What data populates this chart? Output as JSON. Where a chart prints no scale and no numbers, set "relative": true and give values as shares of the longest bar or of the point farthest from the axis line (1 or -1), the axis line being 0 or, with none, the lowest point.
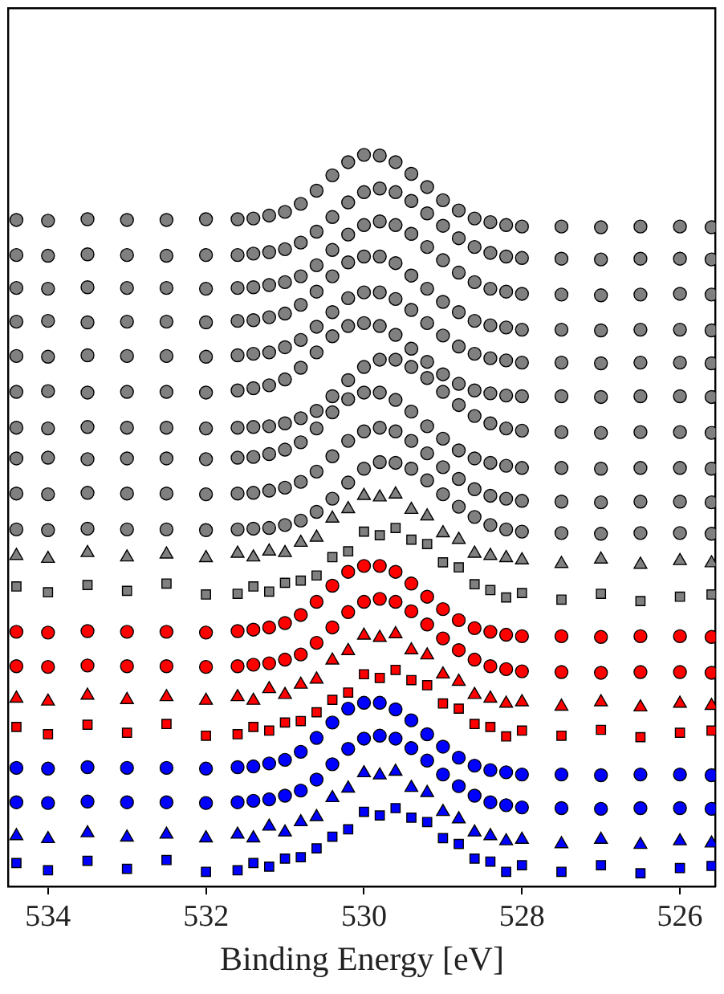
{
  "chart_data": {
    "type": "scatter",
    "relative": true,
    "xlabel": "Binding Energy [eV]",
    "xlim": [
      534.5,
      525.55
    ],
    "xticks": [
      534,
      532,
      530,
      528,
      526
    ],
    "tick_labels": "x",
    "grid": false,
    "legend": false,
    "x": [
      534.4,
      534,
      533.5,
      533,
      532.5,
      532,
      531.6,
      531.4,
      531.2,
      531,
      530.8,
      530.6,
      530.4,
      530.2,
      530,
      529.8,
      529.6,
      529.4,
      529.2,
      529,
      528.8,
      528.6,
      528.4,
      528.2,
      528,
      527.5,
      527,
      526.5,
      526,
      525.6
    ],
    "series": [
      {
        "color": "#808080",
        "marker": "circle",
        "values": [
          0.911,
          0.91,
          0.912,
          0.911,
          0.911,
          0.912,
          0.912,
          0.913,
          0.917,
          0.922,
          0.933,
          0.951,
          0.972,
          0.99,
          1,
          0.999,
          0.99,
          0.974,
          0.956,
          0.938,
          0.924,
          0.913,
          0.908,
          0.904,
          0.902,
          0.902,
          0.901,
          0.902,
          0.902,
          0.901
        ]
      },
      {
        "color": "#808080",
        "marker": "circle",
        "values": [
          0.863,
          0.862,
          0.864,
          0.863,
          0.862,
          0.863,
          0.863,
          0.865,
          0.867,
          0.871,
          0.88,
          0.895,
          0.915,
          0.935,
          0.949,
          0.954,
          0.949,
          0.937,
          0.92,
          0.903,
          0.886,
          0.874,
          0.866,
          0.861,
          0.859,
          0.858,
          0.857,
          0.858,
          0.858,
          0.857
        ]
      },
      {
        "color": "#808080",
        "marker": "circle",
        "values": [
          0.818,
          0.817,
          0.819,
          0.818,
          0.818,
          0.817,
          0.818,
          0.819,
          0.822,
          0.826,
          0.834,
          0.849,
          0.87,
          0.891,
          0.904,
          0.909,
          0.904,
          0.892,
          0.874,
          0.856,
          0.839,
          0.826,
          0.817,
          0.813,
          0.81,
          0.809,
          0.808,
          0.809,
          0.81,
          0.809
        ]
      },
      {
        "color": "#808080",
        "marker": "circle",
        "values": [
          0.772,
          0.773,
          0.771,
          0.772,
          0.772,
          0.771,
          0.773,
          0.774,
          0.778,
          0.783,
          0.795,
          0.813,
          0.834,
          0.853,
          0.861,
          0.861,
          0.852,
          0.835,
          0.817,
          0.799,
          0.785,
          0.773,
          0.767,
          0.764,
          0.761,
          0.761,
          0.76,
          0.761,
          0.761,
          0.76
        ]
      },
      {
        "color": "#808080",
        "marker": "circle",
        "values": [
          0.725,
          0.724,
          0.726,
          0.725,
          0.725,
          0.724,
          0.726,
          0.728,
          0.73,
          0.737,
          0.747,
          0.765,
          0.785,
          0.804,
          0.812,
          0.812,
          0.803,
          0.788,
          0.77,
          0.753,
          0.738,
          0.728,
          0.722,
          0.719,
          0.716,
          0.716,
          0.715,
          0.716,
          0.716,
          0.715
        ]
      },
      {
        "color": "#808080",
        "marker": "circle",
        "values": [
          0.676,
          0.677,
          0.675,
          0.676,
          0.676,
          0.675,
          0.678,
          0.681,
          0.685,
          0.693,
          0.709,
          0.73,
          0.752,
          0.766,
          0.77,
          0.766,
          0.754,
          0.735,
          0.717,
          0.7,
          0.687,
          0.678,
          0.674,
          0.671,
          0.67,
          0.67,
          0.669,
          0.67,
          0.67,
          0.669
        ]
      },
      {
        "color": "#808080",
        "marker": "circle",
        "values": [
          0.627,
          0.626,
          0.628,
          0.627,
          0.627,
          0.626,
          0.627,
          0.628,
          0.629,
          0.633,
          0.64,
          0.65,
          0.67,
          0.692,
          0.71,
          0.72,
          0.72,
          0.71,
          0.695,
          0.676,
          0.658,
          0.643,
          0.633,
          0.626,
          0.623,
          0.621,
          0.62,
          0.621,
          0.621,
          0.62
        ]
      },
      {
        "color": "#808080",
        "marker": "circle",
        "values": [
          0.585,
          0.586,
          0.584,
          0.585,
          0.585,
          0.584,
          0.586,
          0.587,
          0.591,
          0.597,
          0.607,
          0.626,
          0.648,
          0.666,
          0.675,
          0.675,
          0.665,
          0.649,
          0.629,
          0.612,
          0.596,
          0.585,
          0.579,
          0.575,
          0.572,
          0.572,
          0.571,
          0.572,
          0.572,
          0.571
        ]
      },
      {
        "color": "#808080",
        "marker": "circle",
        "values": [
          0.537,
          0.536,
          0.538,
          0.537,
          0.537,
          0.536,
          0.537,
          0.538,
          0.541,
          0.545,
          0.553,
          0.567,
          0.588,
          0.609,
          0.622,
          0.627,
          0.622,
          0.609,
          0.592,
          0.573,
          0.557,
          0.543,
          0.534,
          0.53,
          0.527,
          0.526,
          0.525,
          0.526,
          0.526,
          0.525
        ]
      },
      {
        "color": "#808080",
        "marker": "circle",
        "values": [
          0.488,
          0.487,
          0.489,
          0.488,
          0.488,
          0.487,
          0.488,
          0.489,
          0.49,
          0.494,
          0.5,
          0.512,
          0.53,
          0.552,
          0.571,
          0.58,
          0.579,
          0.571,
          0.555,
          0.536,
          0.519,
          0.505,
          0.494,
          0.488,
          0.485,
          0.483,
          0.482,
          0.483,
          0.483,
          0.482
        ]
      },
      {
        "color": "#808080",
        "marker": "triangle",
        "values": [
          0.452,
          0.448,
          0.456,
          0.45,
          0.454,
          0.449,
          0.455,
          0.45,
          0.458,
          0.456,
          0.47,
          0.477,
          0.503,
          0.516,
          0.534,
          0.532,
          0.536,
          0.515,
          0.506,
          0.483,
          0.474,
          0.455,
          0.452,
          0.449,
          0.446,
          0.441,
          0.447,
          0.44,
          0.445,
          0.442
        ]
      },
      {
        "color": "#808080",
        "marker": "square",
        "values": [
          0.41,
          0.402,
          0.412,
          0.404,
          0.414,
          0.399,
          0.4,
          0.41,
          0.403,
          0.415,
          0.418,
          0.425,
          0.45,
          0.458,
          0.485,
          0.48,
          0.49,
          0.474,
          0.468,
          0.443,
          0.436,
          0.413,
          0.405,
          0.395,
          0.401,
          0.392,
          0.4,
          0.39,
          0.396,
          0.399
        ]
      },
      {
        "color": "#ff0000",
        "marker": "circle",
        "values": [
          0.348,
          0.347,
          0.349,
          0.348,
          0.348,
          0.347,
          0.349,
          0.351,
          0.354,
          0.36,
          0.371,
          0.389,
          0.411,
          0.43,
          0.438,
          0.438,
          0.43,
          0.414,
          0.396,
          0.379,
          0.364,
          0.353,
          0.348,
          0.344,
          0.342,
          0.342,
          0.341,
          0.342,
          0.342,
          0.341
        ]
      },
      {
        "color": "#ff0000",
        "marker": "circle",
        "values": [
          0.301,
          0.3,
          0.302,
          0.301,
          0.301,
          0.3,
          0.301,
          0.303,
          0.305,
          0.31,
          0.317,
          0.333,
          0.354,
          0.375,
          0.389,
          0.393,
          0.389,
          0.376,
          0.358,
          0.339,
          0.323,
          0.31,
          0.301,
          0.297,
          0.294,
          0.293,
          0.292,
          0.293,
          0.293,
          0.292
        ]
      },
      {
        "color": "#ff0000",
        "marker": "triangle",
        "values": [
          0.257,
          0.253,
          0.261,
          0.255,
          0.259,
          0.254,
          0.259,
          0.254,
          0.27,
          0.262,
          0.276,
          0.283,
          0.309,
          0.322,
          0.343,
          0.34,
          0.345,
          0.323,
          0.316,
          0.29,
          0.28,
          0.262,
          0.257,
          0.25,
          0.252,
          0.246,
          0.252,
          0.245,
          0.25,
          0.247
        ]
      },
      {
        "color": "#ff0000",
        "marker": "square",
        "values": [
          0.218,
          0.208,
          0.221,
          0.21,
          0.222,
          0.206,
          0.208,
          0.218,
          0.213,
          0.224,
          0.226,
          0.238,
          0.255,
          0.265,
          0.29,
          0.285,
          0.296,
          0.282,
          0.275,
          0.25,
          0.243,
          0.222,
          0.218,
          0.205,
          0.213,
          0.206,
          0.214,
          0.204,
          0.21,
          0.213
        ]
      },
      {
        "color": "#0000ff",
        "marker": "circle",
        "values": [
          0.162,
          0.161,
          0.163,
          0.162,
          0.162,
          0.161,
          0.163,
          0.164,
          0.168,
          0.173,
          0.184,
          0.203,
          0.224,
          0.243,
          0.251,
          0.251,
          0.242,
          0.227,
          0.208,
          0.191,
          0.176,
          0.165,
          0.159,
          0.156,
          0.153,
          0.153,
          0.152,
          0.153,
          0.153,
          0.152
        ]
      },
      {
        "color": "#0000ff",
        "marker": "circle",
        "values": [
          0.115,
          0.114,
          0.116,
          0.115,
          0.115,
          0.114,
          0.115,
          0.117,
          0.119,
          0.124,
          0.131,
          0.146,
          0.167,
          0.188,
          0.202,
          0.206,
          0.202,
          0.189,
          0.172,
          0.153,
          0.137,
          0.124,
          0.115,
          0.111,
          0.108,
          0.107,
          0.106,
          0.107,
          0.107,
          0.106
        ]
      },
      {
        "color": "#0000ff",
        "marker": "triangle",
        "values": [
          0.069,
          0.065,
          0.073,
          0.067,
          0.071,
          0.066,
          0.071,
          0.066,
          0.082,
          0.074,
          0.088,
          0.095,
          0.121,
          0.134,
          0.155,
          0.152,
          0.157,
          0.135,
          0.128,
          0.102,
          0.092,
          0.074,
          0.069,
          0.062,
          0.064,
          0.058,
          0.064,
          0.057,
          0.062,
          0.059
        ]
      },
      {
        "color": "#0000ff",
        "marker": "square",
        "values": [
          0.032,
          0.022,
          0.035,
          0.024,
          0.036,
          0.02,
          0.022,
          0.032,
          0.027,
          0.038,
          0.04,
          0.052,
          0.068,
          0.078,
          0.102,
          0.097,
          0.107,
          0.094,
          0.088,
          0.066,
          0.058,
          0.038,
          0.034,
          0.02,
          0.029,
          0.02,
          0.029,
          0.018,
          0.025,
          0.028
        ]
      }
    ]
  }
}
